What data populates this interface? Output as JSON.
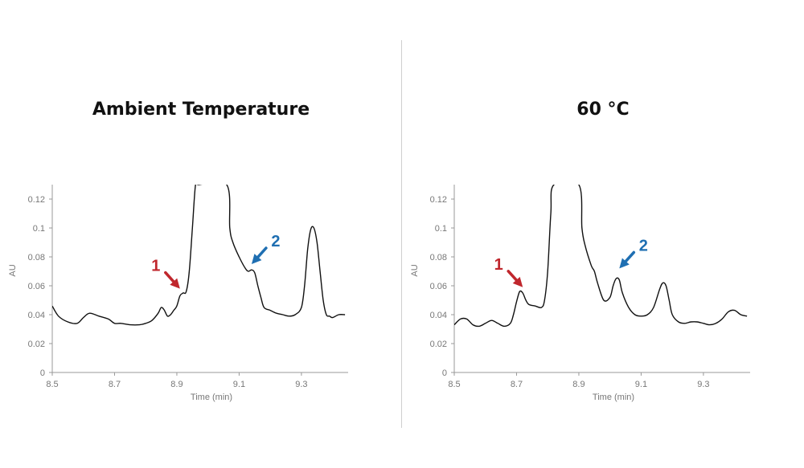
{
  "chart_data": [
    {
      "type": "line",
      "title": "Ambient Temperature",
      "xlabel": "Time (min)",
      "ylabel": "AU",
      "xlim": [
        8.5,
        9.45
      ],
      "ylim": [
        0,
        0.13
      ],
      "xticks": [
        "8.5",
        "8.7",
        "8.9",
        "9.1",
        "9.3"
      ],
      "yticks": [
        "0",
        "0.02",
        "0.04",
        "0.06",
        "0.08",
        "0.1",
        "0.12"
      ],
      "series": [
        {
          "x": [
            8.5,
            8.52,
            8.55,
            8.58,
            8.6,
            8.62,
            8.65,
            8.68,
            8.7,
            8.72,
            8.75,
            8.78,
            8.8,
            8.82,
            8.84,
            8.85,
            8.86,
            8.87,
            8.88,
            8.89,
            8.9,
            8.91,
            8.92,
            8.93,
            8.94,
            8.95,
            8.96,
            8.97,
            9.06,
            9.07,
            9.08,
            9.1,
            9.12,
            9.13,
            9.14,
            9.15,
            9.16,
            9.17,
            9.18,
            9.2,
            9.22,
            9.24,
            9.26,
            9.28,
            9.3,
            9.31,
            9.32,
            9.33,
            9.34,
            9.35,
            9.36,
            9.37,
            9.38,
            9.39,
            9.4,
            9.42,
            9.44
          ],
          "y": [
            0.046,
            0.039,
            0.035,
            0.034,
            0.038,
            0.041,
            0.039,
            0.037,
            0.034,
            0.034,
            0.033,
            0.033,
            0.034,
            0.036,
            0.041,
            0.045,
            0.043,
            0.039,
            0.04,
            0.043,
            0.046,
            0.053,
            0.055,
            0.056,
            0.07,
            0.1,
            0.13,
            0.13,
            0.13,
            0.1,
            0.09,
            0.08,
            0.072,
            0.07,
            0.071,
            0.069,
            0.06,
            0.052,
            0.045,
            0.043,
            0.041,
            0.04,
            0.039,
            0.04,
            0.045,
            0.06,
            0.085,
            0.099,
            0.1,
            0.09,
            0.07,
            0.05,
            0.04,
            0.039,
            0.038,
            0.04,
            0.04
          ]
        }
      ],
      "annotations": [
        {
          "label": "1",
          "color": "#c0272d",
          "x": 8.91,
          "y": 0.058
        },
        {
          "label": "2",
          "color": "#1f6fb2",
          "x": 9.14,
          "y": 0.075
        }
      ]
    },
    {
      "type": "line",
      "title": "60 °C",
      "xlabel": "Time (min)",
      "ylabel": "AU",
      "xlim": [
        8.5,
        9.45
      ],
      "ylim": [
        0,
        0.13
      ],
      "xticks": [
        "8.5",
        "8.7",
        "8.9",
        "9.1",
        "9.3"
      ],
      "yticks": [
        "0",
        "0.02",
        "0.04",
        "0.06",
        "0.08",
        "0.1",
        "0.12"
      ],
      "series": [
        {
          "x": [
            8.5,
            8.52,
            8.54,
            8.56,
            8.58,
            8.6,
            8.62,
            8.64,
            8.66,
            8.68,
            8.69,
            8.7,
            8.71,
            8.72,
            8.73,
            8.74,
            8.76,
            8.78,
            8.79,
            8.8,
            8.81,
            8.82,
            8.9,
            8.91,
            8.92,
            8.94,
            8.95,
            8.96,
            8.98,
            9.0,
            9.01,
            9.02,
            9.03,
            9.04,
            9.06,
            9.08,
            9.1,
            9.12,
            9.14,
            9.16,
            9.17,
            9.18,
            9.19,
            9.2,
            9.22,
            9.24,
            9.26,
            9.28,
            9.3,
            9.32,
            9.34,
            9.36,
            9.38,
            9.4,
            9.42,
            9.44
          ],
          "y": [
            0.033,
            0.037,
            0.037,
            0.033,
            0.032,
            0.034,
            0.036,
            0.034,
            0.032,
            0.034,
            0.04,
            0.049,
            0.056,
            0.055,
            0.05,
            0.047,
            0.046,
            0.045,
            0.05,
            0.07,
            0.11,
            0.13,
            0.13,
            0.1,
            0.088,
            0.074,
            0.07,
            0.062,
            0.05,
            0.052,
            0.06,
            0.065,
            0.064,
            0.055,
            0.045,
            0.04,
            0.039,
            0.04,
            0.045,
            0.058,
            0.062,
            0.06,
            0.05,
            0.04,
            0.035,
            0.034,
            0.035,
            0.035,
            0.034,
            0.033,
            0.034,
            0.037,
            0.042,
            0.043,
            0.04,
            0.039
          ]
        }
      ],
      "annotations": [
        {
          "label": "1",
          "color": "#c0272d",
          "x": 8.72,
          "y": 0.059
        },
        {
          "label": "2",
          "color": "#1f6fb2",
          "x": 9.03,
          "y": 0.072
        }
      ]
    }
  ]
}
